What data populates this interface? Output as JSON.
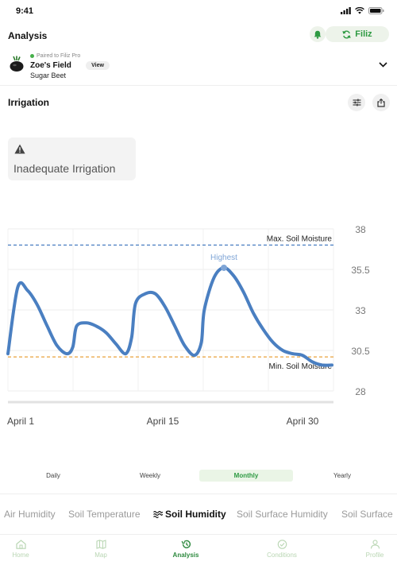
{
  "status": {
    "time": "9:41"
  },
  "header": {
    "title": "Analysis",
    "filiz_label": "Filiz"
  },
  "field": {
    "paired_text": "Paired to Filiz Pro",
    "name": "Zoe's Field",
    "view_label": "View",
    "crop": "Sugar Beet"
  },
  "section": {
    "title": "Irrigation"
  },
  "warning": {
    "text": "Inadequate Irrigation"
  },
  "chart_data": {
    "type": "line",
    "x_tick_labels": [
      "April 1",
      "April 15",
      "April 30"
    ],
    "y_ticks": [
      38,
      35.5,
      33,
      30.5,
      28
    ],
    "ylim": [
      27.6,
      38.5
    ],
    "grid": true,
    "series": [
      {
        "color": "#4a7fc1",
        "points": [
          [
            0,
            30.3
          ],
          [
            1,
            34.4
          ],
          [
            2,
            34.2
          ],
          [
            3,
            33.3
          ],
          [
            4,
            32.0
          ],
          [
            5,
            30.8
          ],
          [
            6,
            30.3
          ],
          [
            6.6,
            30.7
          ],
          [
            7,
            32.0
          ],
          [
            8,
            32.2
          ],
          [
            9,
            32.0
          ],
          [
            10,
            31.6
          ],
          [
            11,
            30.9
          ],
          [
            12,
            30.3
          ],
          [
            12.6,
            31.3
          ],
          [
            13,
            33.4
          ],
          [
            14,
            34.0
          ],
          [
            15,
            34.0
          ],
          [
            16,
            33.2
          ],
          [
            17,
            32.0
          ],
          [
            18,
            30.8
          ],
          [
            19,
            30.2
          ],
          [
            19.7,
            31.0
          ],
          [
            20,
            33.0
          ],
          [
            21,
            35.0
          ],
          [
            22,
            35.6
          ],
          [
            23,
            35.1
          ],
          [
            24,
            34.1
          ],
          [
            25,
            32.8
          ],
          [
            26,
            31.8
          ],
          [
            27,
            31.0
          ],
          [
            28,
            30.5
          ],
          [
            29,
            30.3
          ],
          [
            30,
            30.2
          ],
          [
            31,
            29.8
          ],
          [
            32,
            29.6
          ],
          [
            33,
            29.6
          ]
        ]
      }
    ],
    "reference_lines": [
      {
        "label": "Max. Soil Moisture",
        "value": 37.0,
        "color": "#4a7fc1"
      },
      {
        "label": "Min. Soil Moisture",
        "value": 30.1,
        "color": "#e9a23b"
      }
    ],
    "annotations": [
      {
        "label": "Highest",
        "x": 22,
        "y": 35.6
      }
    ]
  },
  "range_tabs": [
    "Daily",
    "Weekly",
    "Monthly",
    "Yearly"
  ],
  "metric_tabs": [
    "Air Humidity",
    "Soil Temperature",
    "Soil Humidity",
    "Soil Surface Humidity",
    "Soil Surface"
  ],
  "nav": [
    "Home",
    "Map",
    "Analysis",
    "Conditions",
    "Profile"
  ],
  "colors": {
    "accent": "#2e9a42",
    "line": "#4a7fc1",
    "min_line": "#e9a23b"
  }
}
